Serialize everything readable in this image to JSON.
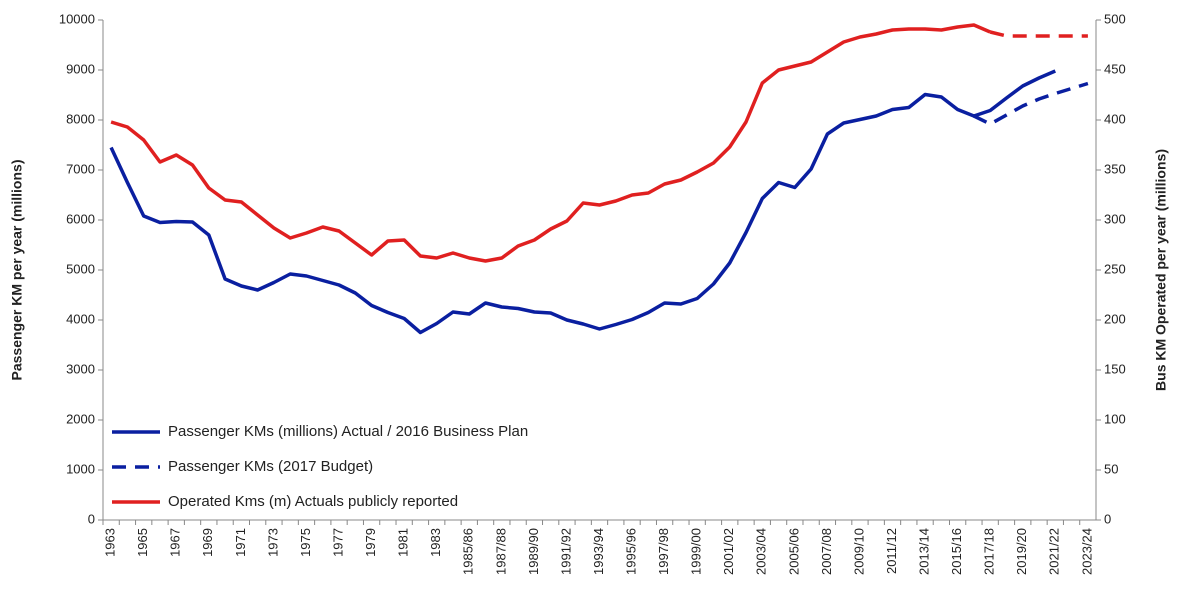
{
  "chart_data": {
    "type": "line",
    "y_label": "Passenger KM per year (millions)",
    "y2_label": "Bus KM Operated per year (millions)",
    "categories": [
      "1963",
      null,
      "1965",
      null,
      "1967",
      null,
      "1969",
      null,
      "1971",
      null,
      "1973",
      null,
      "1975",
      null,
      "1977",
      null,
      "1979",
      null,
      "1981",
      null,
      "1983",
      null,
      "1985/86",
      null,
      "1987/88",
      null,
      "1989/90",
      null,
      "1991/92",
      null,
      "1993/94",
      null,
      "1995/96",
      null,
      "1997/98",
      null,
      "1999/00",
      null,
      "2001/02",
      null,
      "2003/04",
      null,
      "2005/06",
      null,
      "2007/08",
      null,
      "2009/10",
      null,
      "2011/12",
      null,
      "2013/14",
      null,
      "2015/16",
      null,
      "2017/18",
      null,
      "2019/20",
      null,
      "2021/22",
      null,
      "2023/24"
    ],
    "series": [
      {
        "name": "Passenger KMs (millions) Actual / 2016 Business Plan",
        "color": "#0a1fa0",
        "dash": false,
        "values": [
          7450,
          6750,
          6080,
          5950,
          5970,
          5960,
          5700,
          4820,
          4680,
          4600,
          4750,
          4920,
          4880,
          4790,
          4700,
          4540,
          4290,
          4150,
          4030,
          3750,
          3930,
          4160,
          4120,
          4340,
          4260,
          4230,
          4160,
          4140,
          4000,
          3920,
          3820,
          3910,
          4010,
          4150,
          4340,
          4320,
          4430,
          4720,
          5140,
          5750,
          6430,
          6750,
          6650,
          7020,
          7720,
          7940,
          8010,
          8080,
          8210,
          8250,
          8510,
          8460,
          8210,
          8080,
          8190,
          8440,
          8680,
          8840,
          8980,
          null,
          null
        ]
      },
      {
        "name": "Passenger KMs (2017 Budget)",
        "color": "#0a1fa0",
        "dash": true,
        "values": [
          null,
          null,
          null,
          null,
          null,
          null,
          null,
          null,
          null,
          null,
          null,
          null,
          null,
          null,
          null,
          null,
          null,
          null,
          null,
          null,
          null,
          null,
          null,
          null,
          null,
          null,
          null,
          null,
          null,
          null,
          null,
          null,
          null,
          null,
          null,
          null,
          null,
          null,
          null,
          null,
          null,
          null,
          null,
          null,
          null,
          null,
          null,
          null,
          null,
          null,
          null,
          null,
          null,
          8080,
          7920,
          8100,
          8280,
          8420,
          8530,
          8630,
          8730
        ]
      },
      {
        "name": "Operated Kms (m) Actuals publicly reported",
        "color": "#e02020",
        "dash": false,
        "axis": "y2",
        "values": [
          398,
          393,
          380,
          358,
          365,
          355,
          332,
          320,
          318,
          305,
          292,
          282,
          287,
          293,
          289,
          277,
          265,
          279,
          280,
          264,
          262,
          267,
          262,
          259,
          262,
          274,
          280,
          291,
          299,
          317,
          315,
          319,
          325,
          327,
          336,
          340,
          348,
          357,
          373,
          398,
          437,
          450,
          454,
          458,
          468,
          478,
          483,
          486,
          490,
          491,
          491,
          490,
          493,
          495,
          488,
          null,
          null,
          null,
          null,
          null,
          null
        ]
      },
      {
        "color": "#e02020",
        "dash": true,
        "axis": "y2",
        "values": [
          null,
          null,
          null,
          null,
          null,
          null,
          null,
          null,
          null,
          null,
          null,
          null,
          null,
          null,
          null,
          null,
          null,
          null,
          null,
          null,
          null,
          null,
          null,
          null,
          null,
          null,
          null,
          null,
          null,
          null,
          null,
          null,
          null,
          null,
          null,
          null,
          null,
          null,
          null,
          null,
          null,
          null,
          null,
          null,
          null,
          null,
          null,
          null,
          null,
          null,
          null,
          null,
          null,
          null,
          488,
          484,
          484,
          484,
          484,
          484,
          484
        ]
      }
    ],
    "ylim": [
      0,
      10000
    ],
    "yticks": [
      0,
      1000,
      2000,
      3000,
      4000,
      5000,
      6000,
      7000,
      8000,
      9000,
      10000
    ],
    "y2lim": [
      0,
      500
    ],
    "y2ticks": [
      0,
      50,
      100,
      150,
      200,
      250,
      300,
      350,
      400,
      450,
      500
    ],
    "grid": false,
    "legend": "lower left"
  }
}
